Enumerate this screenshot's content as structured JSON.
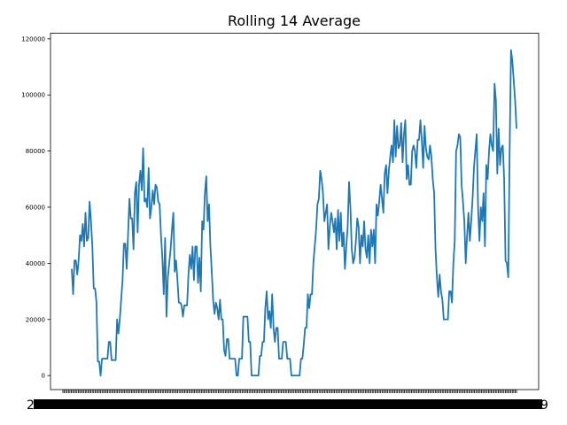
{
  "chart_data": {
    "type": "line",
    "title": "Rolling 14 Average",
    "xlabel": "",
    "ylabel": "",
    "ylim": [
      -5000,
      122000
    ],
    "yticks": [
      0,
      20000,
      40000,
      60000,
      80000,
      100000,
      120000
    ],
    "ytick_labels": [
      "0",
      "20000",
      "40000",
      "60000",
      "80000",
      "100000",
      "120000"
    ],
    "x_tick_edge_labels": [
      "2",
      "9"
    ],
    "grid": false,
    "legend": "none",
    "color": "#1f77b4",
    "series": [
      {
        "values": [
          38000,
          29000,
          41000,
          41000,
          36000,
          41000,
          50000,
          48000,
          54000,
          46000,
          58000,
          48000,
          49000,
          62000,
          55000,
          46000,
          31000,
          31000,
          26000,
          5000,
          5000,
          0,
          6000,
          6000,
          6000,
          6000,
          6000,
          12000,
          12000,
          5500,
          5500,
          5500,
          5500,
          20000,
          15000,
          20000,
          27000,
          34000,
          47000,
          47000,
          38000,
          50000,
          63000,
          56000,
          56000,
          45000,
          65000,
          69000,
          51000,
          68000,
          73000,
          66000,
          81000,
          62000,
          63000,
          60000,
          74000,
          56000,
          60000,
          66000,
          61000,
          68000,
          67000,
          62000,
          61000,
          50000,
          42000,
          29000,
          49000,
          21000,
          35000,
          40000,
          45000,
          52000,
          58000,
          37000,
          41000,
          34000,
          26000,
          26000,
          25000,
          21000,
          25000,
          25000,
          25000,
          36000,
          43000,
          38000,
          46000,
          34000,
          46000,
          46000,
          33000,
          42000,
          30000,
          55000,
          52000,
          65000,
          71000,
          55000,
          61000,
          46000,
          37000,
          27000,
          22000,
          26000,
          24000,
          20000,
          27000,
          20000,
          20000,
          9000,
          7000,
          13000,
          13000,
          6000,
          6000,
          6000,
          6000,
          6000,
          0,
          0,
          6000,
          6000,
          6000,
          21000,
          21000,
          21000,
          21000,
          12000,
          12000,
          0,
          0,
          0,
          0,
          0,
          0,
          7000,
          7000,
          12000,
          12000,
          24000,
          30000,
          20000,
          23000,
          17000,
          29000,
          17000,
          12000,
          17000,
          17000,
          6000,
          6000,
          6000,
          12000,
          12000,
          12000,
          6000,
          6000,
          6000,
          0,
          0,
          0,
          0,
          0,
          0,
          0,
          6000,
          6000,
          11000,
          17000,
          17000,
          29000,
          24000,
          29000,
          29000,
          40000,
          46000,
          52000,
          61000,
          63000,
          73000,
          70000,
          65000,
          55000,
          58000,
          61000,
          45000,
          53000,
          58000,
          55000,
          51000,
          56000,
          45000,
          59000,
          48000,
          58000,
          46000,
          51000,
          38000,
          46000,
          53000,
          69000,
          60000,
          45000,
          40000,
          42000,
          48000,
          56000,
          53000,
          40000,
          50000,
          46000,
          55000,
          45000,
          42000,
          50000,
          40000,
          52000,
          46000,
          52000,
          40000,
          61000,
          57000,
          62000,
          68000,
          63000,
          58000,
          72000,
          75000,
          65000,
          73000,
          78000,
          82000,
          76000,
          91000,
          78000,
          89000,
          81000,
          82000,
          90000,
          76000,
          86000,
          91000,
          70000,
          75000,
          68000,
          68000,
          80000,
          82000,
          80000,
          74000,
          84000,
          84000,
          91000,
          84000,
          74000,
          89000,
          81000,
          78000,
          77000,
          82000,
          78000,
          70000,
          65000,
          45000,
          35000,
          28000,
          36000,
          30000,
          27000,
          20000,
          20000,
          20000,
          20000,
          30000,
          30000,
          26000,
          40000,
          48000,
          80000,
          82000,
          86000,
          85000,
          68000,
          62000,
          55000,
          40000,
          50000,
          58000,
          48000,
          55000,
          63000,
          74000,
          80000,
          86000,
          60000,
          48000,
          60000,
          55000,
          65000,
          46000,
          75000,
          70000,
          80000,
          86000,
          82000,
          80000,
          104000,
          98000,
          72000,
          88000,
          75000,
          81000,
          82000,
          70000,
          41000,
          40000,
          35000,
          80000,
          116000,
          112000,
          105000,
          98000,
          88000
        ]
      }
    ]
  }
}
